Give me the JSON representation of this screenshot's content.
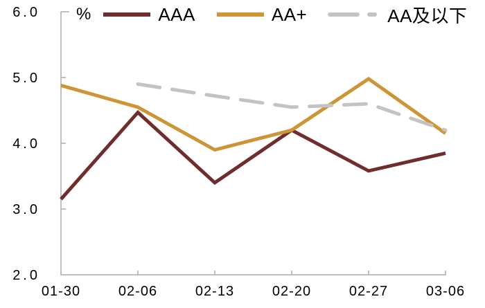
{
  "chart_data": {
    "type": "line",
    "title": "",
    "unit_label": "%",
    "categories": [
      "01-30",
      "02-06",
      "02-13",
      "02-20",
      "02-27",
      "03-06"
    ],
    "series": [
      {
        "name": "AAA",
        "color": "#702D2E",
        "dash": false,
        "values": [
          3.15,
          4.47,
          3.4,
          4.2,
          3.58,
          3.85
        ]
      },
      {
        "name": "AA+",
        "color": "#CE9537",
        "dash": false,
        "values": [
          4.88,
          4.55,
          3.9,
          4.2,
          4.98,
          4.15
        ]
      },
      {
        "name": "AA及以下",
        "color": "#C3C3C3",
        "dash": true,
        "values": [
          null,
          4.9,
          4.72,
          4.55,
          4.6,
          4.2
        ]
      }
    ],
    "ylim": [
      2.0,
      6.0
    ],
    "y_ticks": [
      6.0,
      5.0,
      4.0,
      3.0,
      2.0
    ],
    "y_tick_labels": [
      "6.0",
      "5.0",
      "4.0",
      "3.0",
      "2.0"
    ],
    "grid": false,
    "legend_position": "top",
    "axis_color": "#ABABAB",
    "text_color": "#000000"
  }
}
